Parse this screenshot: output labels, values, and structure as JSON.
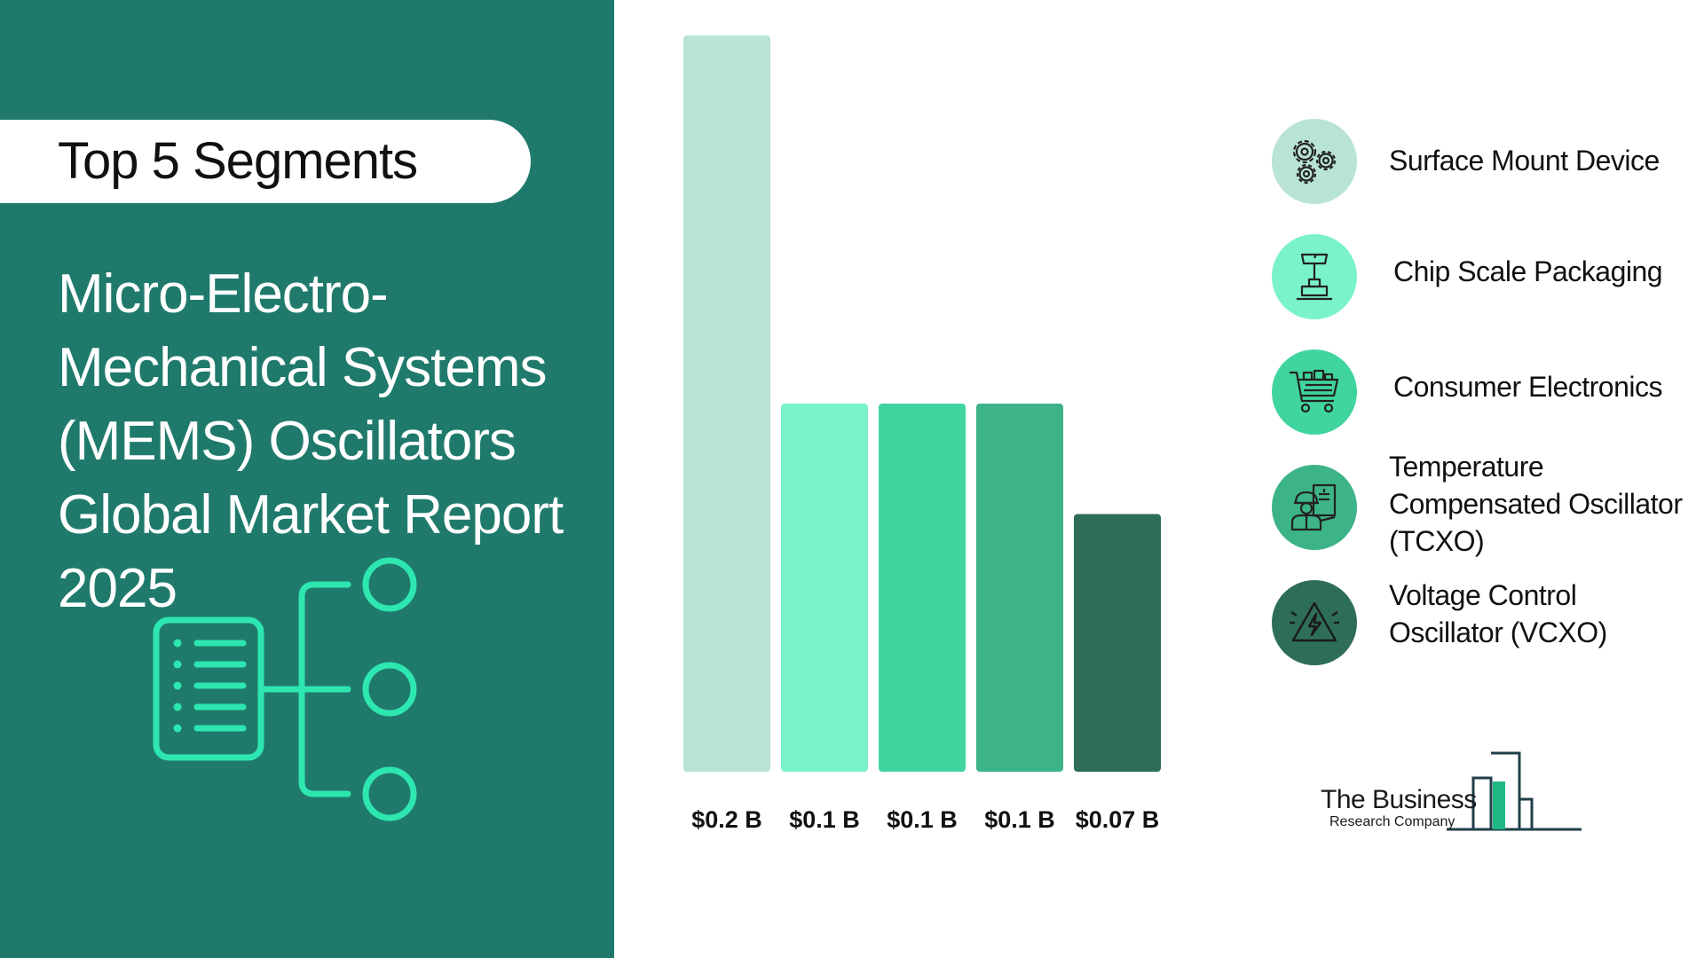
{
  "header": {
    "badge": "Top 5 Segments",
    "title": "Micro-Electro-Mechanical Systems (MEMS) Oscillators Global Market Report 2025"
  },
  "colors": {
    "panel": "#1f7a6c",
    "accent": "#2ee6b0"
  },
  "chart_data": {
    "type": "bar",
    "categories": [
      "Surface Mount Device",
      "Chip Scale Packaging",
      "Consumer Electronics",
      "Temperature Compensated Oscillator (TCXO)",
      "Voltage Control Oscillator (VCXO)"
    ],
    "values": [
      0.2,
      0.1,
      0.1,
      0.1,
      0.07
    ],
    "value_labels": [
      "$0.2 B",
      "$0.1 B",
      "$0.1 B",
      "$0.1 B",
      "$0.07 B"
    ],
    "colors": [
      "#b9e4d4",
      "#7af3c8",
      "#40d59e",
      "#3db488",
      "#2e6e58"
    ],
    "ylim": [
      0,
      0.2
    ],
    "grid": false,
    "legend_position": "right"
  },
  "legend": {
    "items": [
      {
        "label": "Surface Mount Device",
        "icon": "gears-icon",
        "color": "#b9e4d4"
      },
      {
        "label": "Chip Scale Packaging",
        "icon": "chip-tool-icon",
        "color": "#7af3c8"
      },
      {
        "label": "Consumer Electronics",
        "icon": "shopping-cart-icon",
        "color": "#40d59e"
      },
      {
        "label": "Temperature Compensated Oscillator (TCXO)",
        "icon": "engineer-icon",
        "color": "#3db488"
      },
      {
        "label": "Voltage Control Oscillator (VCXO)",
        "icon": "voltage-warning-icon",
        "color": "#2e6e58"
      }
    ]
  },
  "logo": {
    "line1": "The Business",
    "line2": "Research Company"
  }
}
